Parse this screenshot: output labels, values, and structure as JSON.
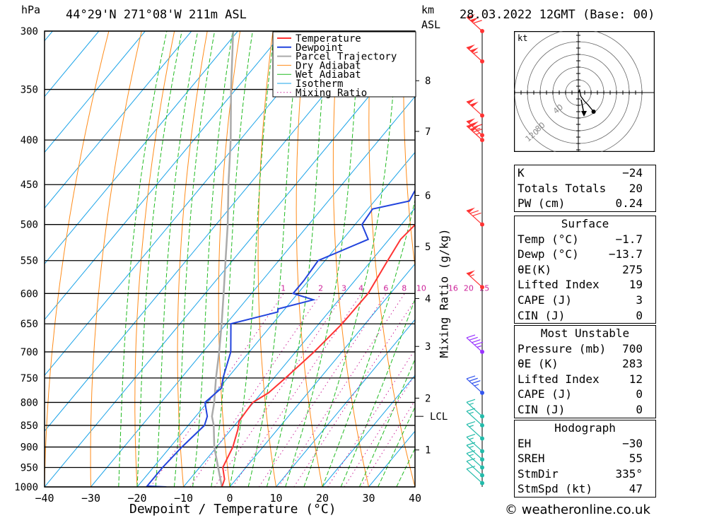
{
  "header": {
    "location": "44°29'N 271°08'W 211m ASL",
    "datetime": "28.03.2022 12GMT (Base: 00)",
    "unit_left": "hPa",
    "unit_km": "km",
    "unit_asl": "ASL"
  },
  "footer": {
    "credit": "© weatheronline.co.uk"
  },
  "chart_data": {
    "type": "line",
    "title": "44°29'N 271°08'W 211m ASL",
    "xlabel": "Dewpoint / Temperature (°C)",
    "ylabel": "hPa",
    "y2label": "Mixing Ratio (g/kg)",
    "xlim": [
      -40,
      40
    ],
    "ylim": [
      1000,
      300
    ],
    "x_ticks": [
      -40,
      -30,
      -20,
      -10,
      0,
      10,
      20,
      30,
      40
    ],
    "x_tick_labels": [
      "−40",
      "−30",
      "−20",
      "−10",
      "0",
      "10",
      "20",
      "30",
      "40"
    ],
    "p_ticks": [
      300,
      350,
      400,
      450,
      500,
      550,
      600,
      650,
      700,
      750,
      800,
      850,
      900,
      950,
      1000
    ],
    "km_ticks": [
      {
        "km": "1",
        "p": 907
      },
      {
        "km": "2",
        "p": 791
      },
      {
        "km": "3",
        "p": 690
      },
      {
        "km": "4",
        "p": 608
      },
      {
        "km": "5",
        "p": 530
      },
      {
        "km": "6",
        "p": 463
      },
      {
        "km": "7",
        "p": 391
      },
      {
        "km": "8",
        "p": 342
      }
    ],
    "lcl": {
      "label": "LCL",
      "p": 830
    },
    "mixing_ratio_labels": [
      "1",
      "2",
      "3",
      "4",
      "6",
      "8",
      "10",
      "16",
      "20",
      "25"
    ],
    "mixing_ratio_values": [
      1,
      2,
      3,
      4,
      6,
      8,
      10,
      16,
      20,
      25
    ],
    "legend": [
      "Temperature",
      "Dewpoint",
      "Parcel Trajectory",
      "Dry Adiabat",
      "Wet Adiabat",
      "Isotherm",
      "Mixing Ratio"
    ],
    "legend_position": "top",
    "colors": {
      "temperature": "#ff3333",
      "dewpoint": "#2244dd",
      "parcel": "#aaaaaa",
      "dry_adiabat": "#ff8c1a",
      "wet_adiabat": "#22bb22",
      "isotherm": "#1aa3e8",
      "mixing_ratio": "#cc2299"
    },
    "series": [
      {
        "name": "Temperature",
        "points": [
          [
            1000,
            -1.7
          ],
          [
            980,
            -2.5
          ],
          [
            950,
            -5.0
          ],
          [
            900,
            -6.5
          ],
          [
            860,
            -8.5
          ],
          [
            840,
            -9.8
          ],
          [
            820,
            -10.0
          ],
          [
            800,
            -10.2
          ],
          [
            780,
            -8.5
          ],
          [
            750,
            -7.5
          ],
          [
            700,
            -6.0
          ],
          [
            650,
            -5.0
          ],
          [
            600,
            -4.8
          ],
          [
            550,
            -6.5
          ],
          [
            520,
            -7.5
          ],
          [
            500,
            -7.0
          ],
          [
            470,
            -6.8
          ],
          [
            450,
            -7.5
          ],
          [
            400,
            -11.0
          ],
          [
            350,
            -16.0
          ],
          [
            330,
            -15.0
          ],
          [
            300,
            -10.0
          ]
        ]
      },
      {
        "name": "Dewpoint",
        "points": [
          [
            1000,
            -13.7
          ],
          [
            998,
            -18.0
          ],
          [
            950,
            -18.0
          ],
          [
            900,
            -17.5
          ],
          [
            850,
            -16.5
          ],
          [
            830,
            -17.5
          ],
          [
            800,
            -20.5
          ],
          [
            785,
            -20.0
          ],
          [
            770,
            -19.5
          ],
          [
            750,
            -21.0
          ],
          [
            700,
            -24.0
          ],
          [
            650,
            -29.0
          ],
          [
            630,
            -21.0
          ],
          [
            625,
            -21.5
          ],
          [
            610,
            -15.5
          ],
          [
            600,
            -21.0
          ],
          [
            580,
            -21.0
          ],
          [
            550,
            -21.5
          ],
          [
            520,
            -14.5
          ],
          [
            500,
            -18.5
          ],
          [
            480,
            -19.0
          ],
          [
            470,
            -12.5
          ],
          [
            450,
            -13.5
          ],
          [
            400,
            -13.0
          ],
          [
            350,
            -19.0
          ],
          [
            325,
            -22.5
          ],
          [
            300,
            -19.0
          ]
        ]
      },
      {
        "name": "Parcel Trajectory",
        "points": [
          [
            1000,
            -1.7
          ],
          [
            950,
            -6.0
          ],
          [
            900,
            -10.5
          ],
          [
            850,
            -14.5
          ],
          [
            830,
            -16.5
          ],
          [
            800,
            -18.5
          ],
          [
            750,
            -22.5
          ],
          [
            700,
            -26.5
          ],
          [
            650,
            -31.0
          ],
          [
            600,
            -36.0
          ],
          [
            550,
            -41.5
          ],
          [
            500,
            -47.5
          ],
          [
            450,
            -54.5
          ],
          [
            400,
            -62.0
          ],
          [
            350,
            -71.0
          ],
          [
            300,
            -81.0
          ]
        ]
      }
    ],
    "wind_barbs": [
      {
        "p": 300,
        "speed_kt": 110
      },
      {
        "p": 325,
        "speed_kt": 105
      },
      {
        "p": 375,
        "speed_kt": 100
      },
      {
        "p": 395,
        "speed_kt": 115
      },
      {
        "p": 400,
        "speed_kt": 115
      },
      {
        "p": 500,
        "speed_kt": 70
      },
      {
        "p": 590,
        "speed_kt": 55
      },
      {
        "p": 700,
        "speed_kt": 45
      },
      {
        "p": 780,
        "speed_kt": 35
      },
      {
        "p": 830,
        "speed_kt": 15
      },
      {
        "p": 850,
        "speed_kt": 15
      },
      {
        "p": 880,
        "speed_kt": 15
      },
      {
        "p": 910,
        "speed_kt": 15
      },
      {
        "p": 930,
        "speed_kt": 15
      },
      {
        "p": 950,
        "speed_kt": 15
      },
      {
        "p": 970,
        "speed_kt": 10
      },
      {
        "p": 990,
        "speed_kt": 10
      }
    ],
    "hodograph": {
      "unit": "kt",
      "ring_labels": [
        "40",
        "80",
        "120"
      ],
      "points_kt": [
        [
          0,
          0
        ],
        [
          2,
          4
        ],
        [
          4,
          -6
        ],
        [
          10,
          -14
        ],
        [
          15,
          -19
        ],
        [
          24,
          -30
        ]
      ]
    }
  },
  "indices": {
    "rows": [
      {
        "label": "K",
        "value": "−24"
      },
      {
        "label": "Totals Totals",
        "value": "20"
      },
      {
        "label": "PW (cm)",
        "value": "0.24"
      }
    ]
  },
  "surface": {
    "title": "Surface",
    "rows": [
      {
        "label": "Temp (°C)",
        "value": "−1.7"
      },
      {
        "label": "Dewp (°C)",
        "value": "−13.7"
      },
      {
        "label": "θE(K)",
        "value": "275"
      },
      {
        "label": "Lifted Index",
        "value": "19"
      },
      {
        "label": "CAPE (J)",
        "value": "3"
      },
      {
        "label": "CIN (J)",
        "value": "0"
      }
    ]
  },
  "most_unstable": {
    "title": "Most Unstable",
    "rows": [
      {
        "label": "Pressure (mb)",
        "value": "700"
      },
      {
        "label": "θE (K)",
        "value": "283"
      },
      {
        "label": "Lifted Index",
        "value": "12"
      },
      {
        "label": "CAPE (J)",
        "value": "0"
      },
      {
        "label": "CIN (J)",
        "value": "0"
      }
    ]
  },
  "hodograph_panel": {
    "title": "Hodograph",
    "rows": [
      {
        "label": "EH",
        "value": "−30"
      },
      {
        "label": "SREH",
        "value": "55"
      },
      {
        "label": "StmDir",
        "value": "335°"
      },
      {
        "label": "StmSpd (kt)",
        "value": "47"
      }
    ]
  }
}
